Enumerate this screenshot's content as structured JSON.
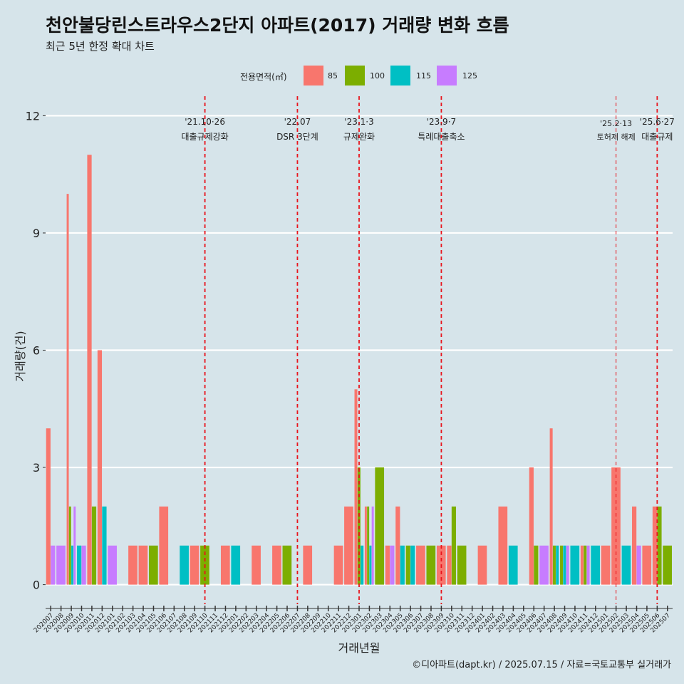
{
  "chart_data": {
    "type": "bar",
    "title": "천안불당린스트라우스2단지 아파트(2017) 거래량 변화 흐름",
    "subtitle": "최근 5년 한정 확대 차트",
    "xlabel": "거래년월",
    "ylabel": "거래량(건)",
    "ylim": [
      -0.5,
      12.5
    ],
    "yticks": [
      0,
      3,
      6,
      9,
      12
    ],
    "caption": "©디아파트(dapt.kr) / 2025.07.15 / 자료=국토교통부 실거래가",
    "legend_title": "전용면적(㎡)",
    "legend_position": "top",
    "series": [
      {
        "name": "85",
        "color": "#F8766D"
      },
      {
        "name": "100",
        "color": "#7CAE00"
      },
      {
        "name": "115",
        "color": "#00BFC4"
      },
      {
        "name": "125",
        "color": "#C77CFF"
      }
    ],
    "categories": [
      "202007",
      "202008",
      "202009",
      "202010",
      "202011",
      "202012",
      "202101",
      "202102",
      "202103",
      "202104",
      "202105",
      "202106",
      "202107",
      "202108",
      "202109",
      "202110",
      "202111",
      "202112",
      "202201",
      "202202",
      "202203",
      "202204",
      "202205",
      "202206",
      "202207",
      "202208",
      "202209",
      "202210",
      "202211",
      "202212",
      "202301",
      "202302",
      "202303",
      "202304",
      "202305",
      "202306",
      "202307",
      "202308",
      "202309",
      "202310",
      "202311",
      "202312",
      "202401",
      "202402",
      "202403",
      "202404",
      "202405",
      "202406",
      "202407",
      "202408",
      "202409",
      "202410",
      "202411",
      "202412",
      "202501",
      "202502",
      "202503",
      "202504",
      "202505",
      "202506",
      "202507"
    ],
    "values": {
      "85": [
        4,
        0,
        10,
        0,
        11,
        6,
        0,
        0,
        1,
        1,
        0,
        2,
        0,
        0,
        1,
        0,
        0,
        1,
        0,
        0,
        1,
        0,
        1,
        0,
        0,
        1,
        0,
        0,
        1,
        2,
        5,
        2,
        0,
        1,
        2,
        0,
        1,
        0,
        1,
        1,
        0,
        0,
        1,
        0,
        2,
        0,
        0,
        3,
        0,
        4,
        0,
        0,
        1,
        0,
        1,
        3,
        0,
        2,
        1,
        2,
        0
      ],
      "100": [
        0,
        0,
        2,
        0,
        2,
        0,
        0,
        0,
        0,
        0,
        1,
        0,
        0,
        0,
        0,
        1,
        0,
        0,
        0,
        0,
        0,
        0,
        0,
        1,
        0,
        0,
        0,
        0,
        0,
        0,
        3,
        2,
        3,
        0,
        0,
        1,
        0,
        1,
        0,
        2,
        1,
        0,
        0,
        0,
        0,
        0,
        0,
        1,
        0,
        1,
        1,
        0,
        1,
        0,
        0,
        0,
        0,
        0,
        0,
        2,
        1
      ],
      "115": [
        0,
        0,
        1,
        1,
        0,
        2,
        0,
        0,
        0,
        0,
        0,
        0,
        0,
        1,
        0,
        0,
        0,
        0,
        1,
        0,
        0,
        0,
        0,
        0,
        0,
        0,
        0,
        0,
        0,
        0,
        1,
        1,
        0,
        0,
        1,
        1,
        0,
        0,
        0,
        0,
        0,
        0,
        0,
        0,
        0,
        1,
        0,
        0,
        0,
        1,
        1,
        1,
        0,
        1,
        0,
        0,
        1,
        0,
        0,
        0,
        0
      ],
      "125": [
        1,
        1,
        2,
        1,
        0,
        0,
        1,
        0,
        0,
        0,
        0,
        0,
        0,
        0,
        0,
        0,
        0,
        0,
        0,
        0,
        0,
        0,
        0,
        0,
        0,
        0,
        0,
        0,
        0,
        0,
        0,
        2,
        0,
        1,
        0,
        0,
        0,
        0,
        0,
        0,
        0,
        0,
        0,
        0,
        0,
        0,
        0,
        0,
        1,
        0,
        1,
        0,
        1,
        0,
        0,
        0,
        0,
        1,
        0,
        0,
        0
      ]
    },
    "annotations": [
      {
        "at": "202110",
        "date": "'21.10·26",
        "text": "대출규제강화",
        "size": "normal"
      },
      {
        "at": "202207",
        "date": "'22.07",
        "text": "DSR 3단계",
        "size": "normal"
      },
      {
        "at": "202301",
        "date": "'23.1·3",
        "text": "규제완화",
        "size": "normal"
      },
      {
        "at": "202309",
        "date": "'23.9·7",
        "text": "특례대출축소",
        "size": "normal"
      },
      {
        "at": "202502",
        "date": "'25.2·13",
        "text": "토허제 해제",
        "size": "small"
      },
      {
        "at": "202506",
        "date": "'25.6·27",
        "text": "대출규제",
        "size": "normal"
      }
    ]
  }
}
